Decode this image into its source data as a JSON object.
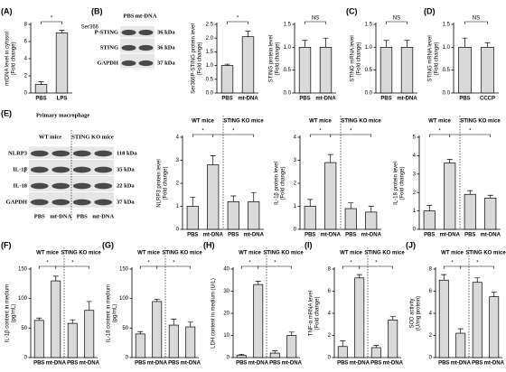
{
  "chart_data": [
    {
      "type": "bar",
      "panel": "(A)",
      "ylabel": [
        "mtDNA level in cytosol",
        "(Fold change)"
      ],
      "categories": [
        "PBS",
        "LPS"
      ],
      "values": [
        1.0,
        7.0
      ],
      "errors": [
        0.3,
        0.3
      ],
      "color": "#d9d9d9",
      "ylim": [
        0,
        8
      ],
      "yticks": [
        0,
        2,
        4,
        6,
        8
      ],
      "significance": [
        "*"
      ]
    },
    {
      "type": "bar",
      "ylabel": [
        "Ser366P-STING protein level",
        "(Fold change)"
      ],
      "categories": [
        "PBS",
        "mt-DNA"
      ],
      "values": [
        1.0,
        2.05
      ],
      "errors": [
        0.05,
        0.2
      ],
      "color": "#d9d9d9",
      "ylim": [
        0,
        2.5
      ],
      "yticks": [
        {
          "value": 0,
          "label": "0.0"
        },
        0.5,
        {
          "value": 1,
          "label": "1.0"
        },
        1.5,
        {
          "value": 2,
          "label": "2.0"
        },
        2.5
      ],
      "significance": [
        "*"
      ]
    },
    {
      "type": "bar",
      "ylabel": [
        "STING protein level",
        "(Fold change)"
      ],
      "categories": [
        "PBS",
        "mt-DNA"
      ],
      "values": [
        1.0,
        1.0
      ],
      "errors": [
        0.15,
        0.2
      ],
      "color": "#d9d9d9",
      "ylim": [
        0,
        1.5
      ],
      "yticks": [
        {
          "value": 0,
          "label": "0.0"
        },
        0.5,
        {
          "value": 1,
          "label": "1.0"
        },
        1.5
      ],
      "significance": [
        "NS"
      ]
    },
    {
      "type": "bar",
      "panel": "(C)",
      "ylabel": [
        "STING mRNA level",
        "(Fold change)"
      ],
      "categories": [
        "PBS",
        "mt-DNA"
      ],
      "values": [
        1.0,
        1.0
      ],
      "errors": [
        0.15,
        0.15
      ],
      "color": "#d9d9d9",
      "ylim": [
        0,
        1.5
      ],
      "yticks": [
        {
          "value": 0,
          "label": "0.0"
        },
        0.5,
        {
          "value": 1,
          "label": "1.0"
        },
        1.5
      ],
      "significance": [
        "NS"
      ]
    },
    {
      "type": "bar",
      "panel": "(D)",
      "ylabel": [
        "STING mRNA level",
        "(Fold change)"
      ],
      "categories": [
        "PBS",
        "CCCP"
      ],
      "values": [
        1.0,
        1.0
      ],
      "errors": [
        0.2,
        0.1
      ],
      "color": "#d9d9d9",
      "ylim": [
        0,
        1.5
      ],
      "yticks": [
        {
          "value": 0,
          "label": "0.0"
        },
        0.5,
        {
          "value": 1,
          "label": "1.0"
        },
        1.5
      ],
      "significance": [
        "NS"
      ]
    },
    {
      "type": "bar",
      "ylabel": [
        "NLRP3 protein level",
        "(Fold change)"
      ],
      "groups": [
        "WT mice",
        "STING KO mice"
      ],
      "categories": [
        "PBS",
        "mt-DNA",
        "PBS",
        "mt-DNA"
      ],
      "values": [
        1.0,
        2.8,
        1.2,
        1.2
      ],
      "errors": [
        0.4,
        0.4,
        0.25,
        0.4
      ],
      "color": "#d9d9d9",
      "ylim": [
        0,
        4
      ],
      "yticks": [
        0,
        1,
        2,
        3,
        4
      ],
      "significance": [
        "*",
        "*"
      ]
    },
    {
      "type": "bar",
      "ylabel": [
        "IL-1β protein level",
        "(Fold change)"
      ],
      "groups": [
        "WT mice",
        "STING KO mice"
      ],
      "categories": [
        "PBS",
        "mt-DNA",
        "PBS",
        "mt-DNA"
      ],
      "values": [
        1.0,
        2.9,
        0.9,
        0.75
      ],
      "errors": [
        0.3,
        0.35,
        0.25,
        0.25
      ],
      "color": "#d9d9d9",
      "ylim": [
        0,
        4
      ],
      "yticks": [
        0,
        1,
        2,
        3,
        4
      ],
      "significance": [
        "*",
        "*"
      ]
    },
    {
      "type": "bar",
      "ylabel": [
        "IL-18 protein level",
        "(Fold change)"
      ],
      "groups": [
        "WT mice",
        "STING KO mice"
      ],
      "categories": [
        "PBS",
        "mt-DNA",
        "PBS",
        "mt-DNA"
      ],
      "values": [
        1.0,
        3.6,
        1.9,
        1.7
      ],
      "errors": [
        0.3,
        0.2,
        0.2,
        0.15
      ],
      "color": "#d9d9d9",
      "ylim": [
        0,
        5
      ],
      "yticks": [
        0,
        1,
        2,
        3,
        4,
        5
      ],
      "significance": [
        "*",
        "*"
      ]
    },
    {
      "type": "bar",
      "panel": "(F)",
      "ylabel": [
        "IL-1β content in medium",
        "(pg/mL)"
      ],
      "groups": [
        "WT mice",
        "STING KO mice"
      ],
      "categories": [
        "PBS",
        "mt-DNA",
        "PBS",
        "mt-DNA"
      ],
      "values": [
        63,
        130,
        58,
        80
      ],
      "errors": [
        4,
        8,
        6,
        15
      ],
      "color": "#d9d9d9",
      "ylim": [
        0,
        150
      ],
      "yticks": [
        0,
        50,
        100,
        150
      ],
      "significance": [
        "*",
        "*"
      ]
    },
    {
      "type": "bar",
      "panel": "(G)",
      "ylabel": [
        "IL-18 content in medium",
        "(pg/mL)"
      ],
      "groups": [
        "WT mice",
        "STING KO mice"
      ],
      "categories": [
        "PBS",
        "mt-DNA",
        "PBS",
        "mt-DNA"
      ],
      "values": [
        40,
        95,
        55,
        52
      ],
      "errors": [
        4,
        4,
        10,
        8
      ],
      "color": "#d9d9d9",
      "ylim": [
        0,
        150
      ],
      "yticks": [
        0,
        50,
        100,
        150
      ],
      "significance": [
        "*",
        "*"
      ]
    },
    {
      "type": "bar",
      "panel": "(H)",
      "ylabel": [
        "LDH content in medium (U/L)"
      ],
      "groups": [
        "WT mice",
        "STING KO mice"
      ],
      "categories": [
        "PBS",
        "mt-DNA",
        "PBS",
        "mt-DNA"
      ],
      "values": [
        1,
        33,
        2,
        10
      ],
      "errors": [
        0.5,
        1.5,
        1,
        1.5
      ],
      "color": "#d9d9d9",
      "ylim": [
        0,
        40
      ],
      "yticks": [
        0,
        10,
        20,
        30,
        40
      ],
      "significance": [
        "*",
        "*"
      ]
    },
    {
      "type": "bar",
      "panel": "(I)",
      "ylabel": [
        "TNF-α mRNA level",
        "(Fold change)"
      ],
      "groups": [
        "WT mice",
        "STING KO mice"
      ],
      "categories": [
        "PBS",
        "mt-DNA",
        "PBS",
        "mt-DNA"
      ],
      "values": [
        1.0,
        7.2,
        0.9,
        3.4
      ],
      "errors": [
        0.5,
        0.3,
        0.2,
        0.3
      ],
      "color": "#d9d9d9",
      "ylim": [
        0,
        8
      ],
      "yticks": [
        0,
        2,
        4,
        6,
        8
      ],
      "significance": [
        "*",
        "*"
      ]
    },
    {
      "type": "bar",
      "panel": "(J)",
      "ylabel": [
        "SOD activity",
        "(U/mg protein)"
      ],
      "groups": [
        "WT mice",
        "STING KO mice"
      ],
      "categories": [
        "PBS",
        "mt-DNA",
        "PBS",
        "mt-DNA"
      ],
      "values": [
        7.0,
        2.2,
        6.8,
        5.5
      ],
      "errors": [
        0.5,
        0.4,
        0.4,
        0.4
      ],
      "color": "#d9d9d9",
      "ylim": [
        0,
        8
      ],
      "yticks": [
        0,
        2,
        4,
        6,
        8
      ],
      "significance": [
        "*",
        "*"
      ]
    }
  ],
  "blots": [
    {
      "panel": "(B)",
      "lanes": [
        "PBS",
        "mt-DNA"
      ],
      "rows": [
        {
          "sup": "Ser366",
          "name": "P-STING",
          "kda": "36 kDa"
        },
        {
          "name": "STING",
          "kda": "36 kDa"
        },
        {
          "name": "GAPDH",
          "kda": "37 kDa"
        }
      ]
    },
    {
      "panel": "(E)",
      "title": "Primary macrophage",
      "groups": [
        "WT mice",
        "STING KO mice"
      ],
      "lanes": [
        "PBS",
        "mt-DNA",
        "PBS",
        "mt-DNA"
      ],
      "rows": [
        {
          "name": "NLRP3",
          "kda": "118 kDa"
        },
        {
          "name": "IL-1β",
          "kda": "35 kDa"
        },
        {
          "name": "IL-18",
          "kda": "22 kDa"
        },
        {
          "name": "GAPDH",
          "kda": "37 kDa"
        }
      ]
    }
  ]
}
